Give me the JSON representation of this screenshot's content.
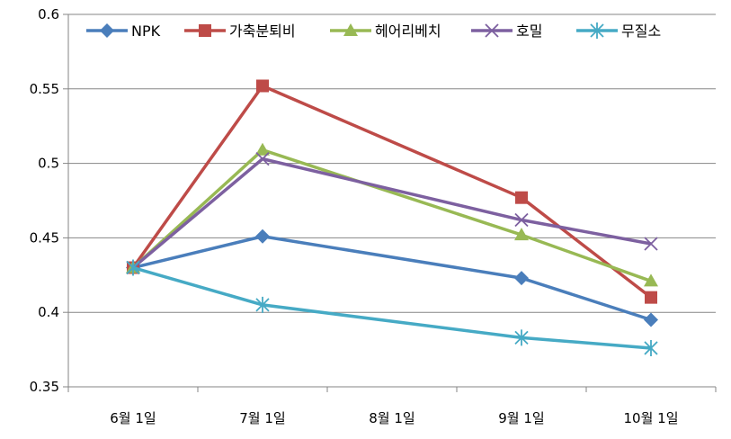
{
  "chart_data": {
    "type": "line",
    "title": "",
    "xlabel": "",
    "ylabel": "",
    "categories": [
      "6월 1일",
      "7월 1일",
      "8월 1일",
      "9월 1일",
      "10월 1일"
    ],
    "x": [
      0,
      1,
      3,
      4
    ],
    "ylim": [
      0.35,
      0.6
    ],
    "yticks": [
      "0.35",
      "0.4",
      "0.45",
      "0.5",
      "0.55",
      "0.6"
    ],
    "grid": "horizontal",
    "legend": "top",
    "series": [
      {
        "name": "NPK",
        "color": "#4a7ebb",
        "marker": "diamond",
        "values": [
          0.43,
          0.451,
          0.423,
          0.395
        ]
      },
      {
        "name": "가축분퇴비",
        "color": "#be4b48",
        "marker": "square",
        "values": [
          0.43,
          0.552,
          0.477,
          0.41
        ]
      },
      {
        "name": "헤어리베치",
        "color": "#98b954",
        "marker": "triangle",
        "values": [
          0.43,
          0.509,
          0.452,
          0.421
        ]
      },
      {
        "name": "호밀",
        "color": "#7d60a0",
        "marker": "x",
        "values": [
          0.43,
          0.503,
          0.462,
          0.446
        ]
      },
      {
        "name": "무질소",
        "color": "#46aac5",
        "marker": "star",
        "values": [
          0.43,
          0.405,
          0.383,
          0.376
        ]
      }
    ]
  }
}
